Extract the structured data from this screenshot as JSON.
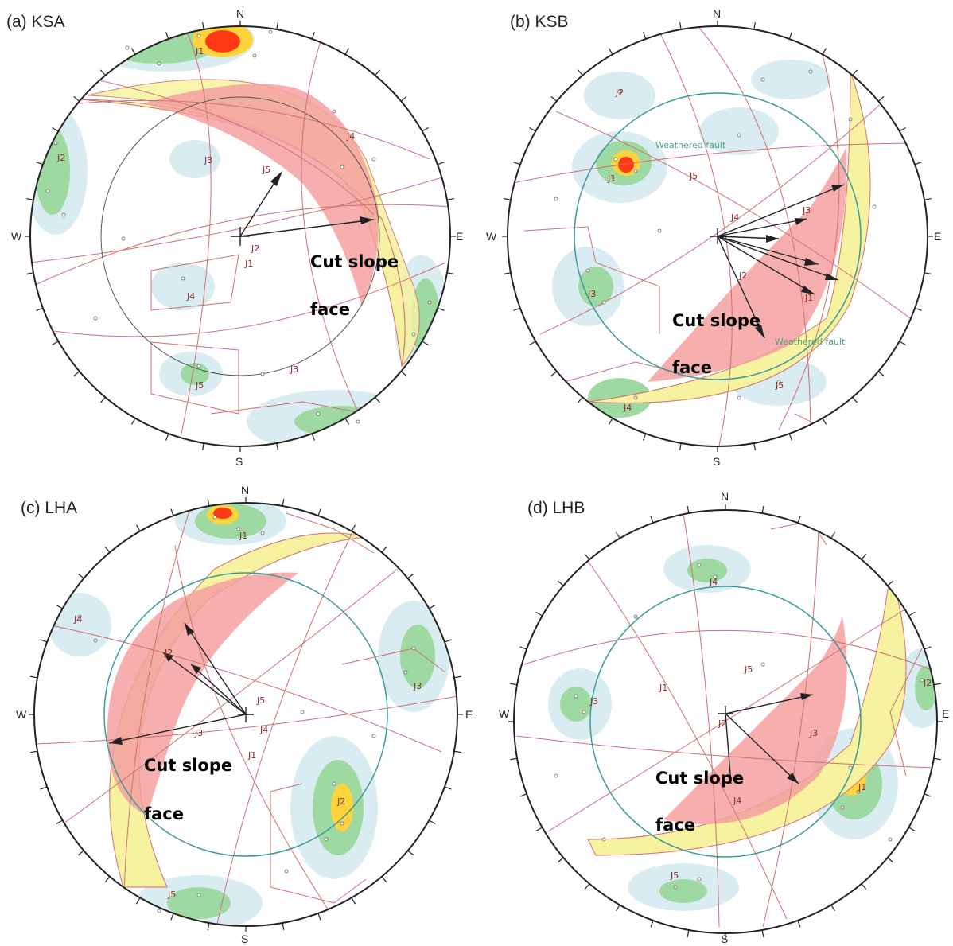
{
  "panels": [
    {
      "id": "a",
      "title": "(a) KSA",
      "directions": {
        "n": "N",
        "s": "S",
        "e": "E",
        "w": "W"
      },
      "joint_labels": [
        "J1",
        "J2",
        "J3",
        "J4",
        "J5"
      ],
      "plane_labels": [
        "J2",
        "J1",
        "J3",
        "J4",
        "J5"
      ],
      "fault_labels": [],
      "cut_label_1": "Cut slope",
      "cut_label_2": "face"
    },
    {
      "id": "b",
      "title": "(b) KSB",
      "directions": {
        "n": "N",
        "s": "S",
        "e": "E",
        "w": "W"
      },
      "joint_labels": [
        "J1",
        "J2",
        "J3",
        "J4",
        "J5"
      ],
      "plane_labels": [
        "J5",
        "J4",
        "J2",
        "J3",
        "J1"
      ],
      "fault_labels": [
        "Weathered fault",
        "Weathered fault"
      ],
      "cut_label_1": "Cut slope",
      "cut_label_2": "face"
    },
    {
      "id": "c",
      "title": "(c) LHA",
      "directions": {
        "n": "N",
        "s": "S",
        "e": "E",
        "w": "W"
      },
      "joint_labels": [
        "J1",
        "J2",
        "J3",
        "J4",
        "J5"
      ],
      "plane_labels": [
        "J2",
        "J5",
        "J3",
        "J4",
        "J1"
      ],
      "fault_labels": [],
      "cut_label_1": "Cut slope",
      "cut_label_2": "face"
    },
    {
      "id": "d",
      "title": "(d) LHB",
      "directions": {
        "n": "N",
        "s": "S",
        "e": "E",
        "w": "W"
      },
      "joint_labels": [
        "J1",
        "J2",
        "J3",
        "J4",
        "J5"
      ],
      "plane_labels": [
        "J5",
        "J1",
        "J2",
        "J3",
        "J4"
      ],
      "fault_labels": [],
      "cut_label_1": "Cut slope",
      "cut_label_2": "face"
    }
  ],
  "colors": {
    "outline": "#222222",
    "plane": "#cf6f6f",
    "friction_circle": "#3a9a9a",
    "daylight_zone": "#f5a0a0",
    "cut_face_band": "#f6f2a0",
    "contour_low": "#d8ecf2",
    "contour_mid": "#9fd9a2",
    "contour_high": "#ffd33a",
    "contour_peak": "#ff3a14",
    "arrow": "#333333",
    "fault": "#4fa37a"
  }
}
